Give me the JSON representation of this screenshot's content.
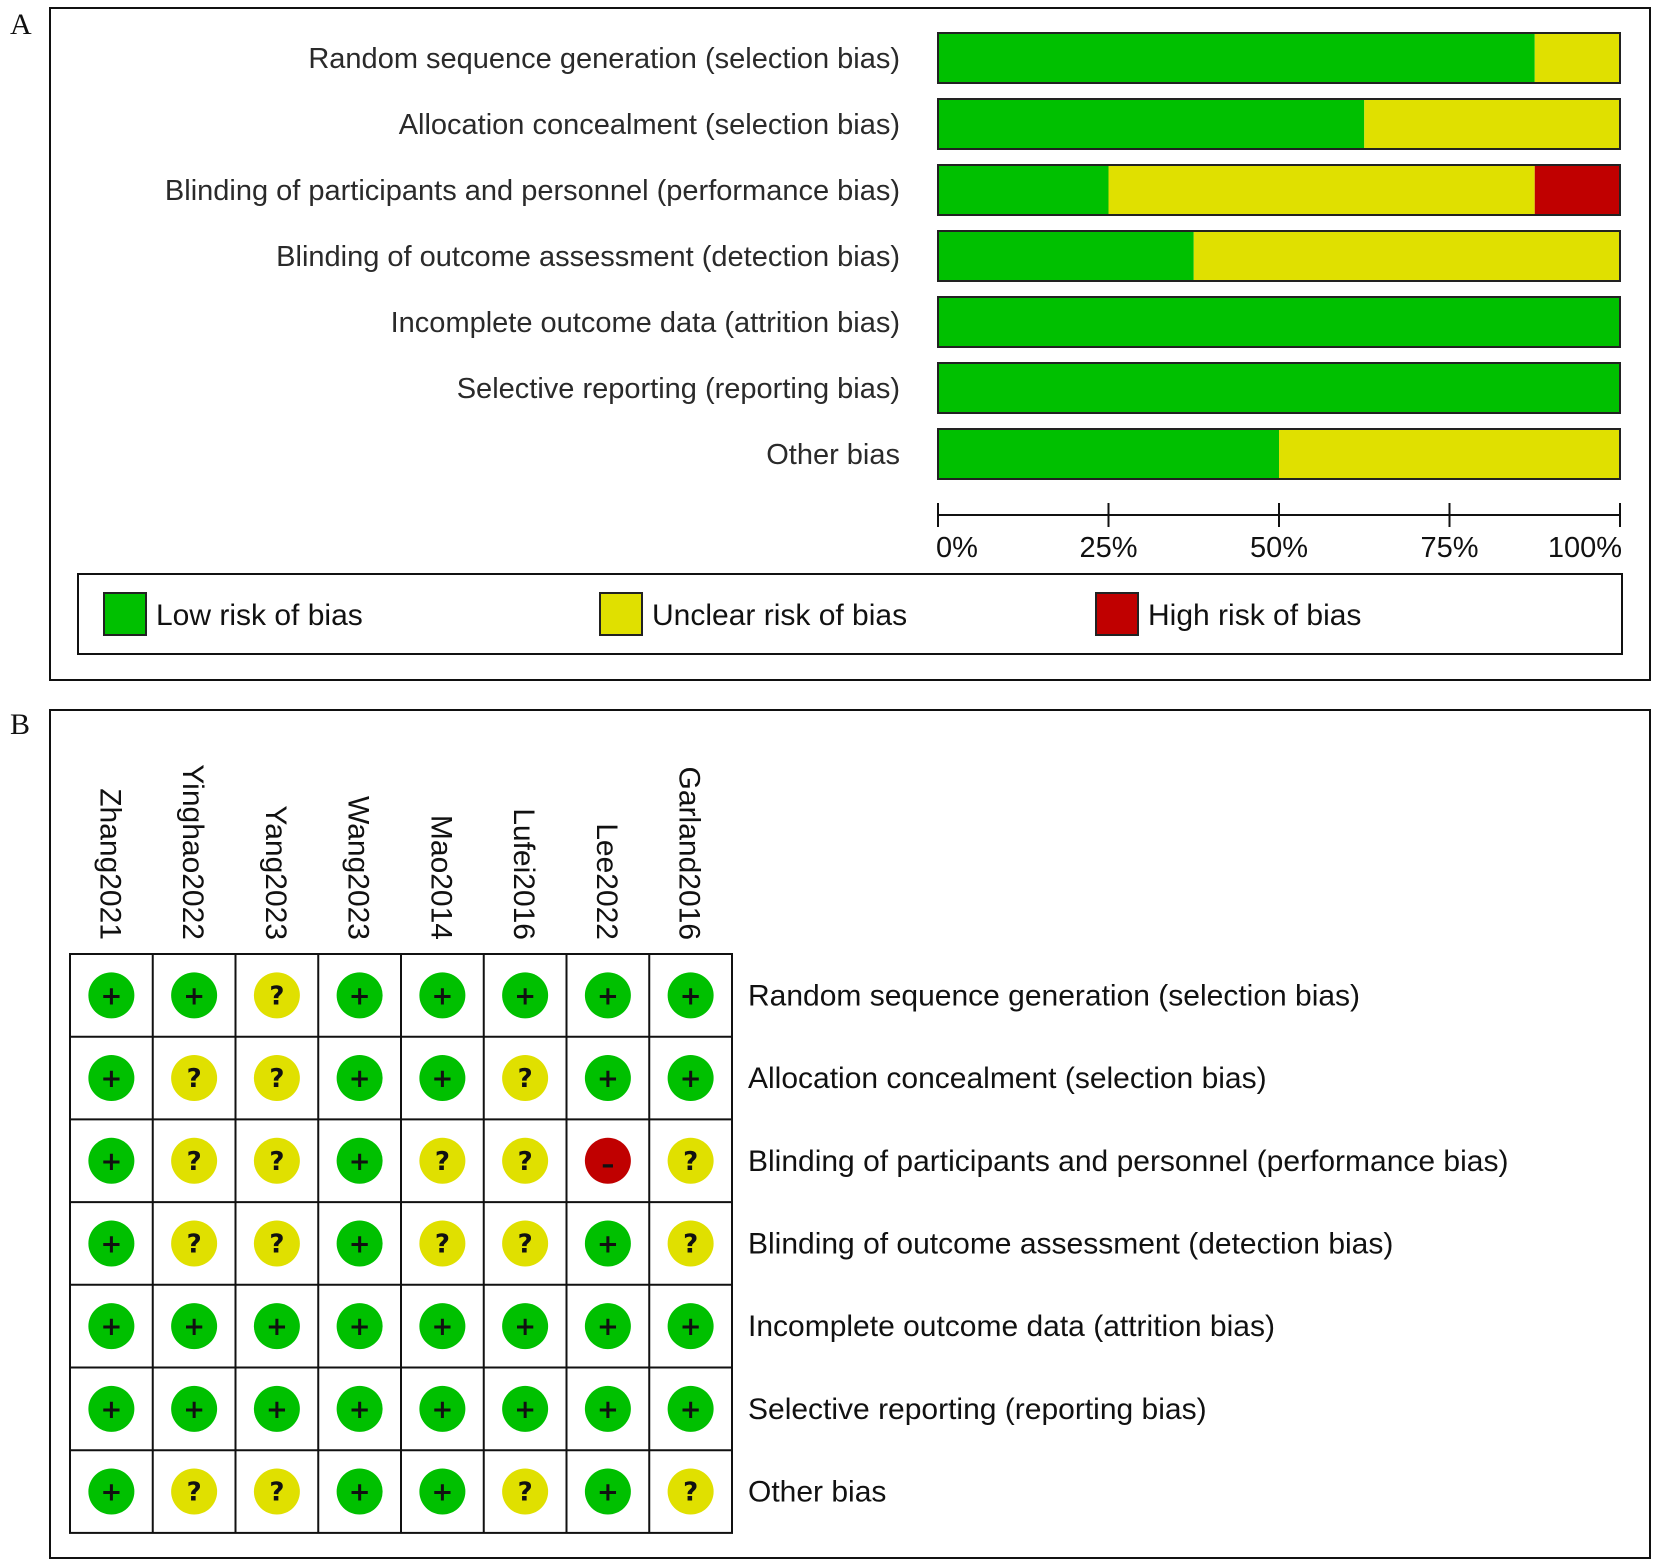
{
  "panels": {
    "a_letter": "A",
    "b_letter": "B"
  },
  "colors": {
    "low": "#00c000",
    "unclear": "#e0e000",
    "high": "#c00000"
  },
  "chart_data": [
    {
      "type": "bar",
      "orientation": "horizontal",
      "stacked": true,
      "categories": [
        "Random sequence generation (selection bias)",
        "Allocation concealment (selection bias)",
        "Blinding of participants and personnel (performance bias)",
        "Blinding of outcome assessment (detection bias)",
        "Incomplete outcome data (attrition bias)",
        "Selective reporting (reporting bias)",
        "Other bias"
      ],
      "series": [
        {
          "name": "Low risk of bias",
          "key": "low",
          "values": [
            87.5,
            62.5,
            25,
            37.5,
            100,
            100,
            50
          ]
        },
        {
          "name": "Unclear risk of bias",
          "key": "unclear",
          "values": [
            12.5,
            37.5,
            62.5,
            62.5,
            0,
            0,
            50
          ]
        },
        {
          "name": "High risk of bias",
          "key": "high",
          "values": [
            0,
            0,
            12.5,
            0,
            0,
            0,
            0
          ]
        }
      ],
      "xlim": [
        0,
        100
      ],
      "xticks": [
        "0%",
        "25%",
        "50%",
        "75%",
        "100%"
      ],
      "legend": [
        "Low risk of bias",
        "Unclear risk of bias",
        "High risk of bias"
      ],
      "legend_position": "bottom"
    },
    {
      "type": "table",
      "studies": [
        "Zhang2021",
        "Yinghao2022",
        "Yang2023",
        "Wang2023",
        "Mao2014",
        "Lufei2016",
        "Lee2022",
        "Garland2016"
      ],
      "domains": [
        "Random sequence generation (selection bias)",
        "Allocation concealment (selection bias)",
        "Blinding of participants and personnel (performance bias)",
        "Blinding of outcome assessment (detection bias)",
        "Incomplete outcome data (attrition bias)",
        "Selective reporting (reporting bias)",
        "Other bias"
      ],
      "judgements": [
        [
          "low",
          "low",
          "unclear",
          "low",
          "low",
          "low",
          "low",
          "low"
        ],
        [
          "low",
          "unclear",
          "unclear",
          "low",
          "low",
          "unclear",
          "low",
          "low"
        ],
        [
          "low",
          "unclear",
          "unclear",
          "low",
          "unclear",
          "unclear",
          "high",
          "unclear"
        ],
        [
          "low",
          "unclear",
          "unclear",
          "low",
          "unclear",
          "unclear",
          "low",
          "unclear"
        ],
        [
          "low",
          "low",
          "low",
          "low",
          "low",
          "low",
          "low",
          "low"
        ],
        [
          "low",
          "low",
          "low",
          "low",
          "low",
          "low",
          "low",
          "low"
        ],
        [
          "low",
          "unclear",
          "unclear",
          "low",
          "low",
          "unclear",
          "low",
          "unclear"
        ]
      ],
      "symbols": {
        "low": "+",
        "unclear": "?",
        "high": "–"
      }
    }
  ]
}
